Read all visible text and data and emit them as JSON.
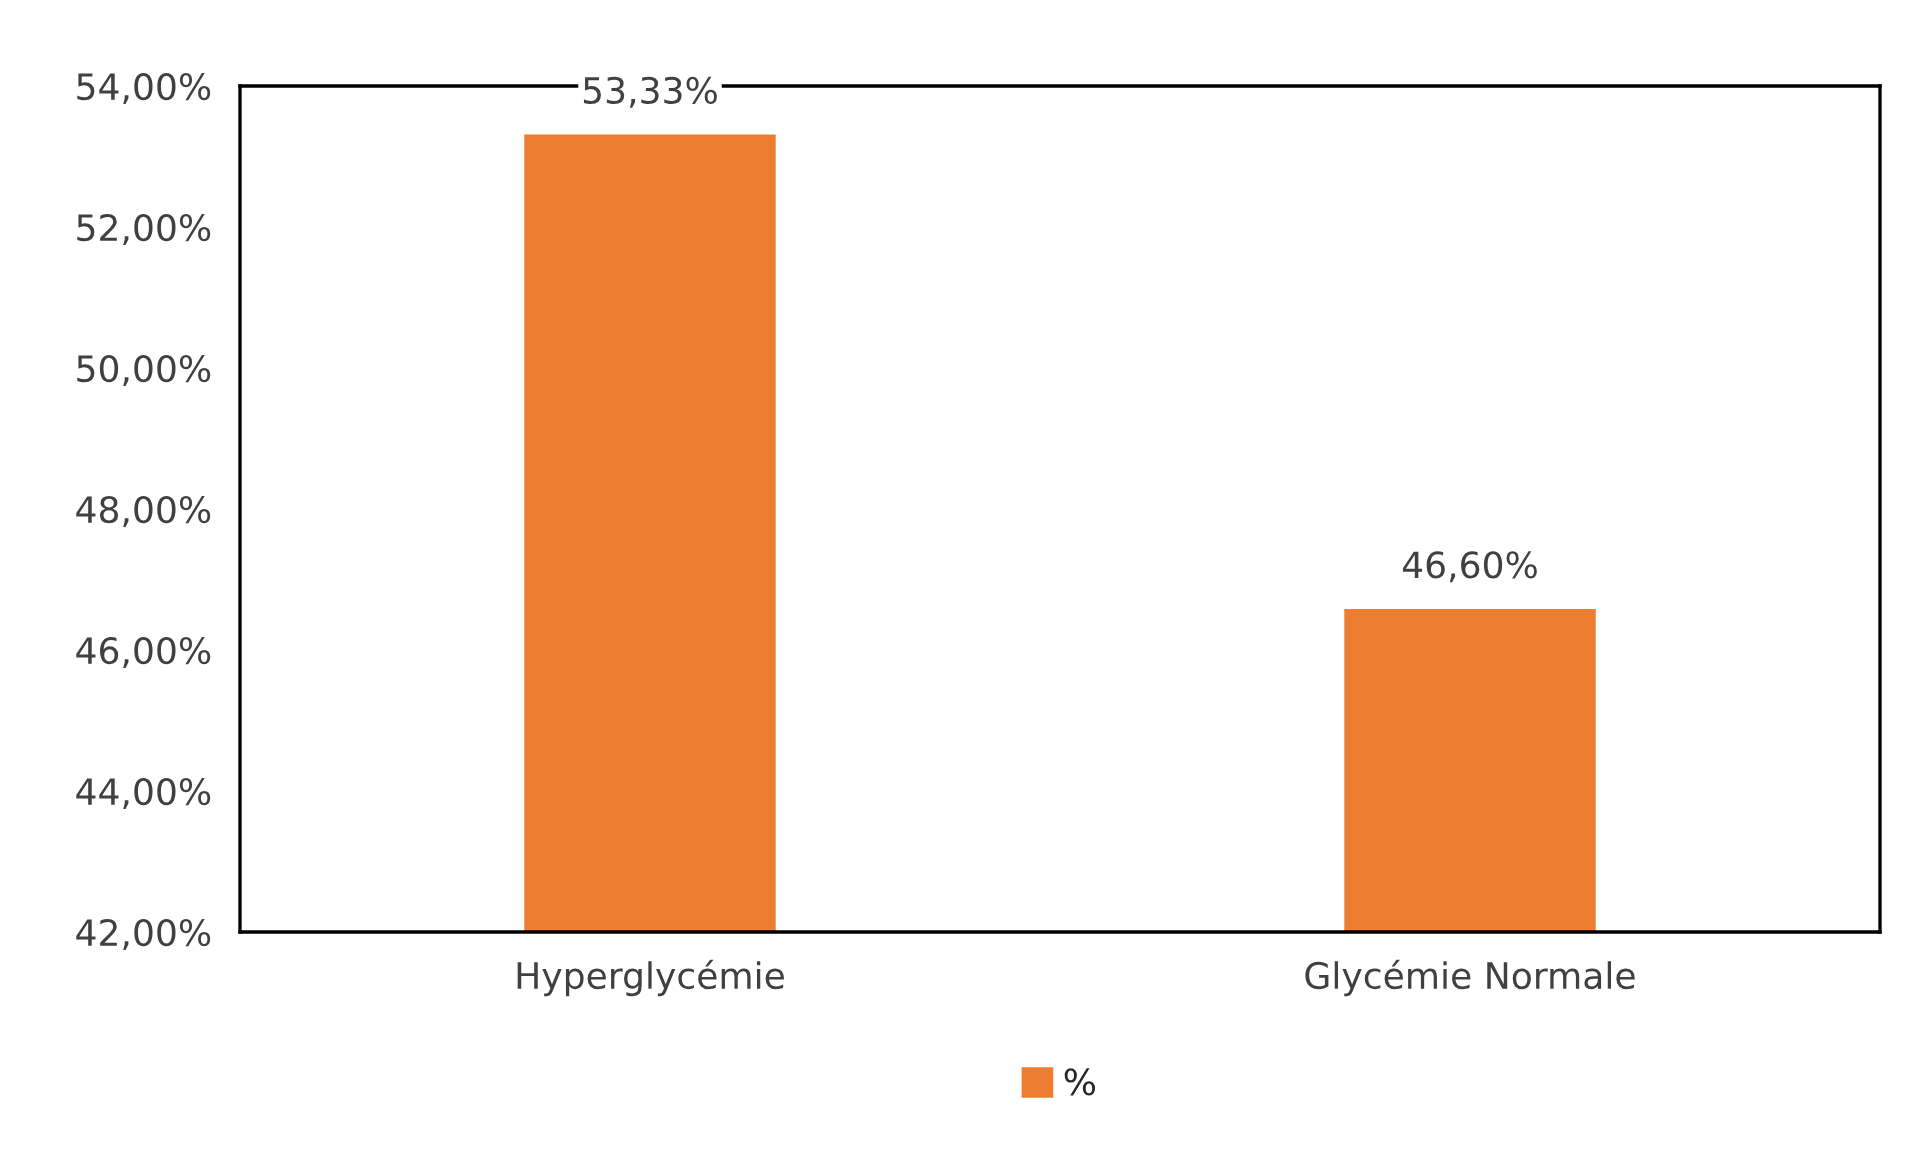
{
  "chart_data": {
    "type": "bar",
    "categories": [
      "Hyperglycémie",
      "Glycémie Normale"
    ],
    "series": [
      {
        "name": "%",
        "color": "#ed7d31",
        "values": [
          53.33,
          46.6
        ],
        "value_labels": [
          "53,33%",
          "46,60%"
        ]
      }
    ],
    "ylim": [
      42,
      54
    ],
    "yticks": [
      {
        "value": 42,
        "label": "42,00%"
      },
      {
        "value": 44,
        "label": "44,00%"
      },
      {
        "value": 46,
        "label": "46,00%"
      },
      {
        "value": 48,
        "label": "48,00%"
      },
      {
        "value": 50,
        "label": "50,00%"
      },
      {
        "value": 52,
        "label": "52,00%"
      },
      {
        "value": 54,
        "label": "54,00%"
      }
    ],
    "grid": false,
    "legend": "bottom"
  }
}
